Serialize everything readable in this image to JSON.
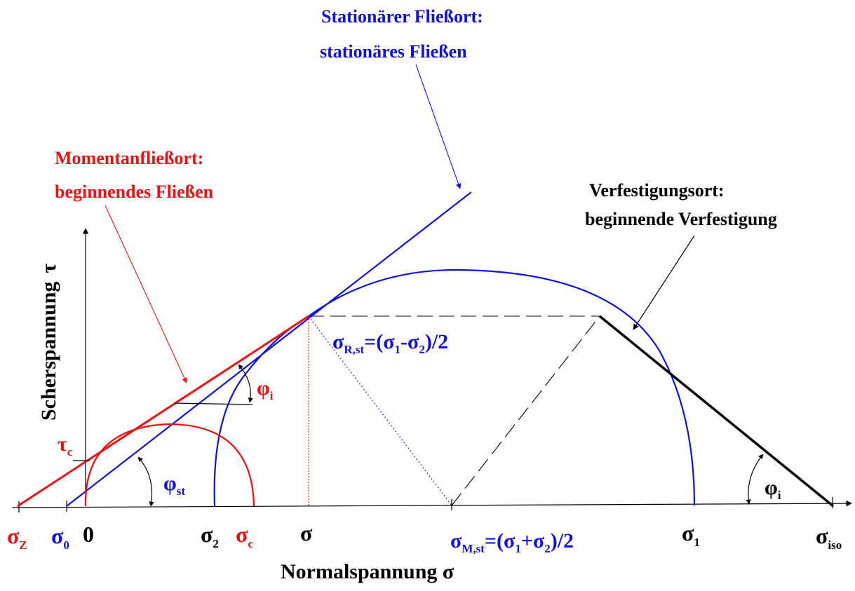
{
  "colors": {
    "red": "#ee1111",
    "blue": "#1111dd",
    "black": "#000000"
  },
  "labels": {
    "stationary_title": "Stationärer Fließort:",
    "stationary_sub": "stationäres Fließen",
    "momentary_title": "Momentanfließort:",
    "momentary_sub": "beginnendes Fließen",
    "hardening_title": "Verfestigungsort:",
    "hardening_sub": "beginnende Verfestigung",
    "y_axis": "Scherspannung",
    "y_axis_symbol": "τ",
    "x_axis": "Normalspannung σ",
    "radius_base": "σ",
    "radius_sub": "R,st",
    "radius_expr_1": "=(σ",
    "radius_expr_1_sub": "1",
    "radius_expr_2": "-σ",
    "radius_expr_2_sub": "2",
    "radius_expr_3": ")/2",
    "phi": "φ",
    "phi_i_sub": "i",
    "phi_st_sub": "st",
    "tau": "τ",
    "tau_c_sub": "c"
  },
  "ticks": {
    "sigma_z": {
      "base": "σ",
      "sub": "Z"
    },
    "sigma_0": {
      "base": "σ",
      "sub": "0"
    },
    "zero": {
      "base": "0"
    },
    "sigma_2": {
      "base": "σ",
      "sub": "2"
    },
    "sigma_c": {
      "base": "σ",
      "sub": "c"
    },
    "sigma": {
      "base": "σ"
    },
    "sigma_m": {
      "base": "σ",
      "sub": "M,st",
      "expr1": "=(σ",
      "expr1_sub": "1",
      "expr2": "+σ",
      "expr2_sub": "2",
      "expr3": ")/2"
    },
    "sigma_1": {
      "base": "σ",
      "sub": "1"
    },
    "sigma_iso": {
      "base": "σ",
      "sub": "iso"
    }
  }
}
